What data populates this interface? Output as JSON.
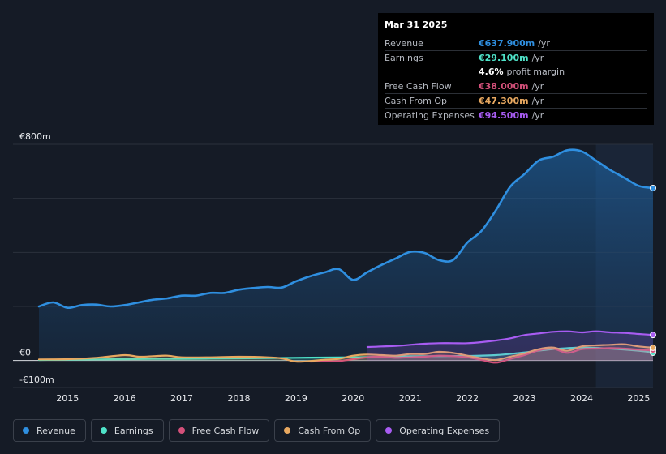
{
  "chart_data": {
    "type": "area",
    "title": "",
    "xlabel": "",
    "ylabel": "",
    "ylim": [
      -100,
      800
    ],
    "y_ticks": [
      {
        "value": 800,
        "label": "€800m"
      },
      {
        "value": 0,
        "label": "€0"
      },
      {
        "value": -100,
        "label": "-€100m"
      }
    ],
    "x_ticks": [
      {
        "value": 2015,
        "label": "2015"
      },
      {
        "value": 2016,
        "label": "2016"
      },
      {
        "value": 2017,
        "label": "2017"
      },
      {
        "value": 2018,
        "label": "2018"
      },
      {
        "value": 2019,
        "label": "2019"
      },
      {
        "value": 2020,
        "label": "2020"
      },
      {
        "value": 2021,
        "label": "2021"
      },
      {
        "value": 2022,
        "label": "2022"
      },
      {
        "value": 2023,
        "label": "2023"
      },
      {
        "value": 2024,
        "label": "2024"
      },
      {
        "value": 2025,
        "label": "2025"
      }
    ],
    "xlim": [
      2014.5,
      2025.25
    ],
    "highlight_from": 2024.25,
    "series": [
      {
        "name": "Revenue",
        "color": "#2f8fe0",
        "fill": true,
        "x": [
          2014.5,
          2014.75,
          2015.0,
          2015.25,
          2015.5,
          2015.75,
          2016.0,
          2016.25,
          2016.5,
          2016.75,
          2017.0,
          2017.25,
          2017.5,
          2017.75,
          2018.0,
          2018.25,
          2018.5,
          2018.75,
          2019.0,
          2019.25,
          2019.5,
          2019.75,
          2020.0,
          2020.25,
          2020.5,
          2020.75,
          2021.0,
          2021.25,
          2021.5,
          2021.75,
          2022.0,
          2022.25,
          2022.5,
          2022.75,
          2023.0,
          2023.25,
          2023.5,
          2023.75,
          2024.0,
          2024.25,
          2024.5,
          2024.75,
          2025.0,
          2025.25
        ],
        "values": [
          200,
          215,
          195,
          205,
          207,
          200,
          205,
          215,
          225,
          230,
          240,
          240,
          250,
          250,
          262,
          268,
          272,
          270,
          293,
          312,
          326,
          338,
          298,
          327,
          354,
          378,
          402,
          398,
          372,
          372,
          436,
          480,
          556,
          643,
          690,
          740,
          754,
          778,
          774,
          740,
          705,
          676,
          646,
          638
        ]
      },
      {
        "name": "Earnings",
        "color": "#4fe3c9",
        "fill": true,
        "x": [
          2014.5,
          2015.0,
          2015.5,
          2016.0,
          2016.5,
          2017.0,
          2017.5,
          2018.0,
          2018.5,
          2019.0,
          2019.5,
          2020.0,
          2020.5,
          2021.0,
          2021.5,
          2022.0,
          2022.5,
          2023.0,
          2023.5,
          2024.0,
          2024.5,
          2025.0,
          2025.25
        ],
        "values": [
          2,
          3,
          4,
          5,
          6,
          6,
          7,
          8,
          9,
          10,
          11,
          12,
          14,
          16,
          16,
          17,
          20,
          30,
          42,
          48,
          44,
          36,
          29.1
        ]
      },
      {
        "name": "Free Cash Flow",
        "color": "#d4507a",
        "fill": true,
        "x": [
          2019.25,
          2019.5,
          2019.75,
          2020.0,
          2020.25,
          2020.5,
          2020.75,
          2021.0,
          2021.25,
          2021.5,
          2021.75,
          2022.0,
          2022.25,
          2022.5,
          2022.75,
          2023.0,
          2023.25,
          2023.5,
          2023.75,
          2024.0,
          2024.25,
          2024.5,
          2024.75,
          2025.0,
          2025.25
        ],
        "values": [
          -4,
          -3,
          -2,
          5,
          12,
          14,
          10,
          12,
          14,
          18,
          16,
          12,
          2,
          -8,
          6,
          20,
          38,
          44,
          28,
          42,
          44,
          46,
          44,
          40,
          38
        ]
      },
      {
        "name": "Cash From Op",
        "color": "#e8a860",
        "fill": true,
        "x": [
          2014.5,
          2015.0,
          2015.5,
          2016.0,
          2016.25,
          2016.5,
          2016.75,
          2017.0,
          2017.5,
          2018.0,
          2018.5,
          2018.75,
          2019.0,
          2019.25,
          2019.5,
          2019.75,
          2020.0,
          2020.25,
          2020.5,
          2020.75,
          2021.0,
          2021.25,
          2021.5,
          2021.75,
          2022.0,
          2022.25,
          2022.5,
          2022.75,
          2023.0,
          2023.25,
          2023.5,
          2023.75,
          2024.0,
          2024.25,
          2024.5,
          2024.75,
          2025.0,
          2025.25
        ],
        "values": [
          4,
          5,
          10,
          20,
          14,
          16,
          18,
          12,
          12,
          14,
          12,
          8,
          -4,
          -2,
          3,
          6,
          18,
          22,
          20,
          18,
          24,
          24,
          32,
          28,
          18,
          8,
          2,
          14,
          26,
          42,
          48,
          36,
          52,
          56,
          58,
          60,
          52,
          47.3
        ]
      },
      {
        "name": "Operating Expenses",
        "color": "#a85cf2",
        "fill": true,
        "x": [
          2020.25,
          2020.5,
          2020.75,
          2021.0,
          2021.25,
          2021.5,
          2021.75,
          2022.0,
          2022.25,
          2022.5,
          2022.75,
          2023.0,
          2023.25,
          2023.5,
          2023.75,
          2024.0,
          2024.25,
          2024.5,
          2024.75,
          2025.0,
          2025.25
        ],
        "values": [
          50,
          52,
          54,
          58,
          62,
          64,
          64,
          64,
          68,
          74,
          82,
          94,
          100,
          106,
          108,
          104,
          108,
          104,
          102,
          98,
          94.5
        ]
      }
    ]
  },
  "tooltip": {
    "date": "Mar 31 2025",
    "rows": [
      {
        "label": "Revenue",
        "value": "€637.900m",
        "unit": "/yr",
        "color": "#2f8fe0"
      },
      {
        "label": "Earnings",
        "value": "€29.100m",
        "unit": "/yr",
        "color": "#4fe3c9"
      },
      {
        "label": "",
        "value": "4.6%",
        "unit": "profit margin",
        "color": "#ffffff"
      },
      {
        "label": "Free Cash Flow",
        "value": "€38.000m",
        "unit": "/yr",
        "color": "#d4507a"
      },
      {
        "label": "Cash From Op",
        "value": "€47.300m",
        "unit": "/yr",
        "color": "#e8a860"
      },
      {
        "label": "Operating Expenses",
        "value": "€94.500m",
        "unit": "/yr",
        "color": "#a85cf2"
      }
    ]
  },
  "legend": [
    {
      "label": "Revenue",
      "color": "#2f8fe0"
    },
    {
      "label": "Earnings",
      "color": "#4fe3c9"
    },
    {
      "label": "Free Cash Flow",
      "color": "#d4507a"
    },
    {
      "label": "Cash From Op",
      "color": "#e8a860"
    },
    {
      "label": "Operating Expenses",
      "color": "#a85cf2"
    }
  ]
}
